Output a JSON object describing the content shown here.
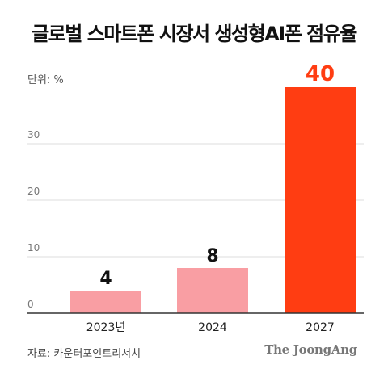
{
  "title": "글로벌 스마트폰 시장서 생성형AI폰 점유율",
  "unit_label": "단위: %",
  "source": "자료: 카운터포인트리서치",
  "logo_text": "The JoongAng",
  "colors": {
    "past_bar": "#f99ea3",
    "forecast_bar": "#ff3d12",
    "forecast_label": "#ff3d12",
    "label": "#111111",
    "grid": "#dddddd",
    "axis": "#333333"
  },
  "chart_data": {
    "type": "bar",
    "categories": [
      "2023년",
      "2024",
      "2027"
    ],
    "values": [
      4,
      8,
      40
    ],
    "data_labels": [
      "4",
      "8",
      "40"
    ],
    "highlight_index": 2,
    "y_ticks": [
      "0",
      "10",
      "20",
      "30"
    ],
    "ylim": [
      0,
      40
    ],
    "grid": true,
    "title": "글로벌 스마트폰 시장서 생성형AI폰 점유율",
    "xlabel": "",
    "ylabel": "단위: %"
  }
}
